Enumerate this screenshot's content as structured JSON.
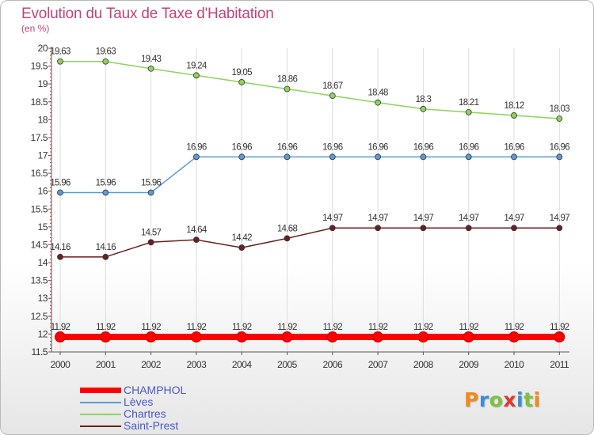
{
  "header": {
    "title": "Evolution du Taux de Taxe d'Habitation",
    "subtitle": "(en %)"
  },
  "logo": {
    "text": "Proxiti",
    "colors": [
      "#f08a1c",
      "#3a8ed6",
      "#7cc242",
      "#e03a2a",
      "#3a8ed6",
      "#7cc242",
      "#f08a1c"
    ]
  },
  "chart_data": {
    "type": "line",
    "title": "Evolution du Taux de Taxe d'Habitation",
    "ylabel": "(en %)",
    "xlabel": "",
    "x": [
      "2000",
      "2001",
      "2002",
      "2003",
      "2004",
      "2005",
      "2006",
      "2007",
      "2008",
      "2009",
      "2010",
      "2011"
    ],
    "ylim": [
      11.5,
      20
    ],
    "yticks": [
      "20",
      "19.5",
      "19",
      "18.5",
      "18",
      "17.5",
      "17",
      "16.5",
      "16",
      "15.5",
      "15",
      "14.5",
      "14",
      "13.5",
      "13",
      "12.5",
      "12",
      "11.5"
    ],
    "grid": "vertical",
    "legend_position": "bottom-left",
    "series": [
      {
        "name": "CHAMPHOL",
        "color": "#ff0000",
        "emphasis": true,
        "values": [
          11.92,
          11.92,
          11.92,
          11.92,
          11.92,
          11.92,
          11.92,
          11.92,
          11.92,
          11.92,
          11.92,
          11.92
        ],
        "labels": [
          "11.92",
          "11.92",
          "11.92",
          "11.92",
          "11.92",
          "11.92",
          "11.92",
          "11.92",
          "11.92",
          "11.92",
          "11.92",
          "11.92"
        ]
      },
      {
        "name": "Lèves",
        "color": "#5b9bd5",
        "emphasis": false,
        "values": [
          15.96,
          15.96,
          15.96,
          16.96,
          16.96,
          16.96,
          16.96,
          16.96,
          16.96,
          16.96,
          16.96,
          16.96
        ],
        "labels": [
          "15.96",
          "15.96",
          "15.96",
          "16.96",
          "16.96",
          "16.96",
          "16.96",
          "16.96",
          "16.96",
          "16.96",
          "16.96",
          "16.96"
        ]
      },
      {
        "name": "Chartres",
        "color": "#8ed35a",
        "emphasis": false,
        "values": [
          19.63,
          19.63,
          19.43,
          19.24,
          19.05,
          18.86,
          18.67,
          18.48,
          18.3,
          18.21,
          18.12,
          18.03
        ],
        "labels": [
          "19.63",
          "19.63",
          "19.43",
          "19.24",
          "19.05",
          "18.86",
          "18.67",
          "18.48",
          "18.3",
          "18.21",
          "18.12",
          "18.03"
        ]
      },
      {
        "name": "Saint-Prest",
        "color": "#6b1f1f",
        "emphasis": false,
        "values": [
          14.16,
          14.16,
          14.57,
          14.64,
          14.42,
          14.68,
          14.97,
          14.97,
          14.97,
          14.97,
          14.97,
          14.97
        ],
        "labels": [
          "14.16",
          "14.16",
          "14.57",
          "14.64",
          "14.42",
          "14.68",
          "14.97",
          "14.97",
          "14.97",
          "14.97",
          "14.97",
          "14.97"
        ]
      }
    ]
  }
}
